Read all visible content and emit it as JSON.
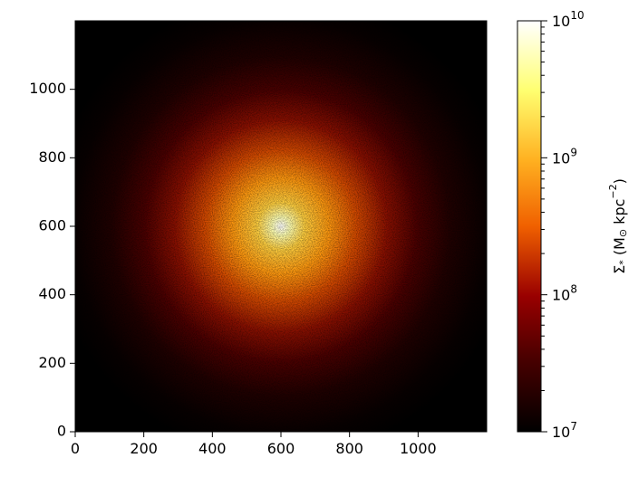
{
  "chart_data": {
    "type": "heatmap",
    "title": "",
    "xlabel": "",
    "ylabel": "",
    "xlim": [
      0,
      1200
    ],
    "ylim": [
      0,
      1200
    ],
    "x_ticks": [
      0,
      200,
      400,
      600,
      800,
      1000
    ],
    "y_ticks": [
      0,
      200,
      400,
      600,
      800,
      1000
    ],
    "peak_center": [
      600,
      600
    ],
    "colormap": "afmhot",
    "colorbar": {
      "scale": "log",
      "min": 10000000,
      "max": 10000000000,
      "ticks": [
        {
          "mantissa": "10",
          "exponent": "7"
        },
        {
          "mantissa": "10",
          "exponent": "8"
        },
        {
          "mantissa": "10",
          "exponent": "9"
        },
        {
          "mantissa": "10",
          "exponent": "10"
        }
      ],
      "label": {
        "symbol": "Σ",
        "sub": "*",
        "open": " (M",
        "sun": "⊙",
        "unit": "  kpc",
        "exp": "−2",
        "close": ")"
      }
    }
  }
}
